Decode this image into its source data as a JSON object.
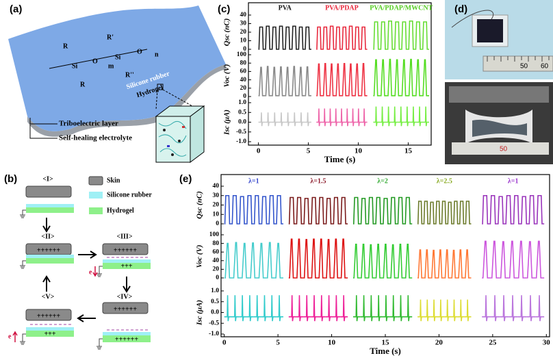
{
  "panel_a": {
    "label": "(a)",
    "layers": [
      "Silicone rubber",
      "Hydrogel"
    ],
    "callouts": [
      "Triboelectric layer",
      "Self-healing electrolyte"
    ],
    "formula": {
      "atoms": [
        "Si",
        "O",
        "Si",
        "O"
      ],
      "groups": [
        "R",
        "R",
        "R'",
        "R''"
      ],
      "subscripts": [
        "m",
        "n"
      ]
    }
  },
  "panel_b": {
    "label": "(b)",
    "states": [
      "<I>",
      "<II>",
      "<III>",
      "<IV>",
      "<V>"
    ],
    "legend": [
      "Skin",
      "Silicone rubber",
      "Hydrogel"
    ],
    "charges": {
      "full": "++++++",
      "half": "+++"
    },
    "electron": "e"
  },
  "panel_c": {
    "label": "(c)"
  },
  "panel_d": {
    "label": "(d)",
    "ruler": [
      "50",
      "60"
    ]
  },
  "panel_e": {
    "label": "(e)"
  },
  "chart_data": [
    {
      "type": "line",
      "xlabel": "Time (s)",
      "xlim": [
        -1,
        17.3
      ],
      "xticks": [
        0,
        5,
        10,
        15
      ],
      "groups": [
        {
          "name": "PVA",
          "color": "#111111"
        },
        {
          "name": "PVA/PDAP",
          "color": "#e8283c"
        },
        {
          "name": "PVA/PDAP/MWCNT",
          "color": "#55cc22"
        }
      ],
      "rows": [
        {
          "ylabel": "Qsc (nC)",
          "shape": "plateau",
          "ylim": [
            0,
            40
          ],
          "yticks": [
            0,
            10,
            20,
            30,
            40
          ],
          "segments": [
            {
              "color": "#222222",
              "x": [
                0,
                5.3
              ],
              "base": 0,
              "peaks": [
                26,
                27,
                26,
                27,
                26,
                27,
                26,
                26
              ]
            },
            {
              "color": "#e8283c",
              "x": [
                5.8,
                10.9
              ],
              "base": 0,
              "peaks": [
                26,
                26,
                27,
                26,
                26,
                27,
                26,
                26
              ]
            },
            {
              "color": "#66dd33",
              "x": [
                11.5,
                17.1
              ],
              "base": 0,
              "peaks": [
                32,
                32,
                33,
                32,
                32,
                33,
                32,
                32
              ]
            }
          ]
        },
        {
          "ylabel": "Voc (V)",
          "shape": "peak",
          "ylim": [
            0,
            100
          ],
          "yticks": [
            0,
            20,
            40,
            60,
            80,
            100
          ],
          "segments": [
            {
              "color": "#888888",
              "x": [
                0,
                5.3
              ],
              "base": 2,
              "peaks": [
                70,
                72,
                70,
                71,
                70,
                72,
                70,
                71
              ]
            },
            {
              "color": "#ee3344",
              "x": [
                5.8,
                10.9
              ],
              "base": 2,
              "peaks": [
                78,
                79,
                78,
                78,
                79,
                78,
                78,
                79
              ]
            },
            {
              "color": "#55dd22",
              "x": [
                11.5,
                17.1
              ],
              "base": 2,
              "peaks": [
                88,
                88,
                89,
                88,
                88,
                89,
                88,
                88
              ]
            }
          ]
        },
        {
          "ylabel": "Isc (μA)",
          "shape": "spike",
          "ylim": [
            -1,
            1
          ],
          "yticks": [
            {
              "value": -1,
              "label": "-1.0"
            },
            -0.5,
            {
              "value": 0,
              "label": "0.0"
            },
            0.5,
            {
              "value": 1,
              "label": "1.0"
            }
          ],
          "segments": [
            {
              "color": "#c8c8c8",
              "x": [
                0,
                5.3
              ],
              "base": 0,
              "trough": -0.2,
              "peaks": [
                0.5,
                0.5,
                0.5,
                0.5,
                0.5,
                0.5,
                0.5,
                0.5
              ]
            },
            {
              "color": "#ee66aa",
              "x": [
                5.8,
                10.9
              ],
              "base": 0,
              "trough": -0.2,
              "peaks": [
                0.7,
                0.7,
                0.7,
                0.7,
                0.7,
                0.7,
                0.7,
                0.7,
                0.7
              ]
            },
            {
              "color": "#77ee44",
              "x": [
                11.5,
                17.1
              ],
              "base": 0,
              "trough": -0.2,
              "peaks": [
                0.8,
                0.8,
                0.8,
                0.8,
                0.8,
                0.8,
                0.8,
                0.8,
                0.8
              ]
            }
          ]
        }
      ]
    },
    {
      "type": "line",
      "xlabel": "Time (s)",
      "xlim": [
        -0.3,
        30.3
      ],
      "xticks": [
        0,
        5,
        10,
        15,
        20,
        25,
        30
      ],
      "groups": [
        {
          "name": "λ=1",
          "color": "#3344cc"
        },
        {
          "name": "λ=1.5",
          "color": "#8b1a2a"
        },
        {
          "name": "λ=2",
          "color": "#33aa33"
        },
        {
          "name": "λ=2.5",
          "color": "#88aa22"
        },
        {
          "name": "λ=1",
          "color": "#9933cc"
        }
      ],
      "rows": [
        {
          "ylabel": "Qsc (nC)",
          "shape": "plateau",
          "ylim": [
            0,
            40
          ],
          "yticks": [
            0,
            10,
            20,
            30,
            40
          ],
          "segments": [
            {
              "color": "#3355cc",
              "x": [
                0,
                5.5
              ],
              "base": 0,
              "peaks": [
                30,
                30,
                29,
                30,
                30,
                29,
                30,
                30
              ]
            },
            {
              "color": "#7a1a1a",
              "x": [
                6,
                11.5
              ],
              "base": 0,
              "peaks": [
                28,
                28,
                27,
                28,
                28,
                27,
                28,
                28
              ]
            },
            {
              "color": "#229922",
              "x": [
                12,
                17.5
              ],
              "base": 0,
              "peaks": [
                28,
                27,
                28,
                28,
                27,
                28,
                28,
                28
              ]
            },
            {
              "color": "#6b7a2a",
              "x": [
                18,
                23
              ],
              "base": 0,
              "peaks": [
                24,
                24,
                23,
                24,
                24,
                23,
                24,
                24,
                24
              ]
            },
            {
              "color": "#9933bb",
              "x": [
                24,
                29.8
              ],
              "base": 0,
              "peaks": [
                30,
                30,
                29,
                30,
                30,
                29,
                30,
                30
              ]
            }
          ]
        },
        {
          "ylabel": "Voc (V)",
          "shape": "peak",
          "ylim": [
            0,
            100
          ],
          "yticks": [
            0,
            20,
            40,
            60,
            80,
            100
          ],
          "segments": [
            {
              "color": "#44cccc",
              "x": [
                0,
                5.5
              ],
              "base": 0,
              "peaks": [
                80,
                82,
                80,
                81,
                80,
                82,
                80
              ]
            },
            {
              "color": "#dd1111",
              "x": [
                6,
                11.5
              ],
              "base": 0,
              "peaks": [
                90,
                90,
                89,
                90,
                90,
                89,
                90,
                90
              ]
            },
            {
              "color": "#33cc33",
              "x": [
                12,
                17.5
              ],
              "base": 0,
              "peaks": [
                78,
                78,
                77,
                78,
                78,
                77,
                78,
                78
              ]
            },
            {
              "color": "#ff7733",
              "x": [
                18,
                23
              ],
              "base": 0,
              "peaks": [
                65,
                65,
                64,
                65,
                65,
                64,
                65,
                65
              ]
            },
            {
              "color": "#cc55dd",
              "x": [
                24,
                29.8
              ],
              "base": 0,
              "peaks": [
                85,
                85,
                84,
                85,
                85,
                84,
                85
              ]
            }
          ]
        },
        {
          "ylabel": "Isc (μA)",
          "shape": "spike",
          "ylim": [
            -1,
            1
          ],
          "yticks": [
            {
              "value": -1,
              "label": "-1.0"
            },
            -0.5,
            {
              "value": 0,
              "label": "0.0"
            },
            0.5,
            {
              "value": 1,
              "label": "1.0"
            }
          ],
          "segments": [
            {
              "color": "#33cccc",
              "x": [
                0,
                5.5
              ],
              "base": -0.2,
              "trough": -0.4,
              "peaks": [
                0.8,
                0.8,
                0.8,
                0.8,
                0.8,
                0.8,
                0.8,
                0.8
              ]
            },
            {
              "color": "#ee2299",
              "x": [
                6,
                11.5
              ],
              "base": -0.2,
              "trough": -0.4,
              "peaks": [
                0.8,
                0.8,
                0.8,
                0.8,
                0.8,
                0.8,
                0.8,
                0.8
              ]
            },
            {
              "color": "#33bb33",
              "x": [
                12,
                17.5
              ],
              "base": -0.2,
              "trough": -0.4,
              "peaks": [
                0.8,
                0.8,
                0.8,
                0.8,
                0.8,
                0.8,
                0.8,
                0.8
              ]
            },
            {
              "color": "#dddd33",
              "x": [
                18,
                23
              ],
              "base": -0.2,
              "trough": -0.4,
              "peaks": [
                0.6,
                0.6,
                0.6,
                0.6,
                0.6,
                0.6,
                0.6,
                0.6
              ]
            },
            {
              "color": "#bb77dd",
              "x": [
                24,
                29.8
              ],
              "base": -0.2,
              "trough": -0.4,
              "peaks": [
                0.8,
                0.8,
                0.8,
                0.8,
                0.8,
                0.8,
                0.8
              ]
            }
          ]
        }
      ]
    }
  ]
}
